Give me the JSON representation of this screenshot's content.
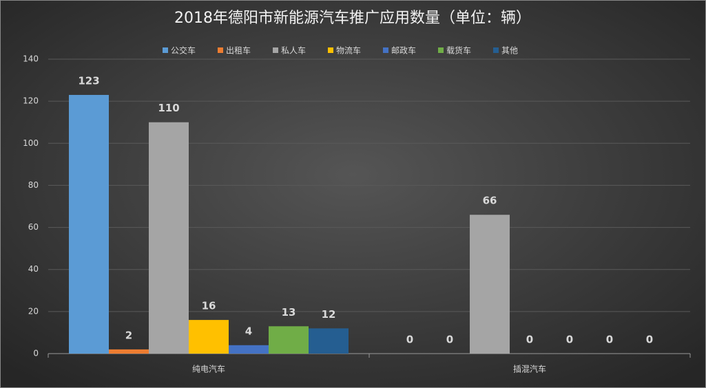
{
  "chart_data": {
    "type": "bar",
    "title": "2018年德阳市新能源汽车推广应用数量（单位：辆）",
    "categories": [
      "纯电汽车",
      "插混汽车"
    ],
    "series": [
      {
        "name": "公交车",
        "color": "#5b9bd5",
        "values": [
          123,
          0
        ]
      },
      {
        "name": "出租车",
        "color": "#ed7d31",
        "values": [
          2,
          0
        ]
      },
      {
        "name": "私人车",
        "color": "#a5a5a5",
        "values": [
          110,
          66
        ]
      },
      {
        "name": "物流车",
        "color": "#ffc000",
        "values": [
          16,
          0
        ]
      },
      {
        "name": "邮政车",
        "color": "#4472c4",
        "values": [
          4,
          0
        ]
      },
      {
        "name": "载货车",
        "color": "#70ad47",
        "values": [
          13,
          0
        ]
      },
      {
        "name": "其他",
        "color": "#255e91",
        "values": [
          12,
          0
        ]
      }
    ],
    "ylim": [
      0,
      140
    ],
    "yticks": [
      0,
      20,
      40,
      60,
      80,
      100,
      120,
      140
    ],
    "grid": true,
    "legend": "top"
  }
}
